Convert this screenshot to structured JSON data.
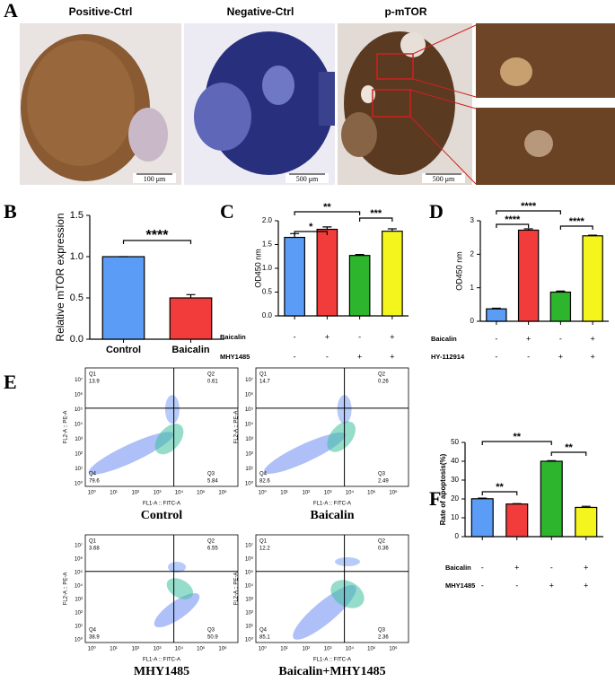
{
  "panel_a": {
    "label": "A",
    "titles": [
      "Positive-Ctrl",
      "Negative-Ctrl",
      "p-mTOR"
    ],
    "scale_bars": [
      "100 μm",
      "500 μm",
      "500 μm"
    ]
  },
  "chart_data": [
    {
      "type": "bar",
      "label": "B",
      "ylabel": "Relative mTOR expression",
      "categories": [
        "Control",
        "Baicalin"
      ],
      "values": [
        1.0,
        0.5
      ],
      "errors": [
        0,
        0.04
      ],
      "colors": [
        "#5b9cf6",
        "#f23c3c"
      ],
      "ylim": [
        0,
        1.5
      ],
      "yticks": [
        {
          "value": 0,
          "label": "0.0"
        },
        {
          "value": 0.5,
          "label": "0.5"
        },
        {
          "value": 1,
          "label": "1.0"
        },
        {
          "value": 1.5,
          "label": "1.5"
        }
      ],
      "comparisons": [
        {
          "from": 0,
          "to": 1,
          "label": "****"
        }
      ]
    },
    {
      "type": "bar",
      "label": "C",
      "ylabel": "OD450 nm",
      "values": [
        1.65,
        1.82,
        1.27,
        1.78
      ],
      "errors": [
        0.08,
        0.05,
        0.02,
        0.05
      ],
      "colors": [
        "#5b9cf6",
        "#f23c3c",
        "#2db52d",
        "#f5f51e"
      ],
      "ylim": [
        0,
        2
      ],
      "yticks": [
        {
          "value": 0,
          "label": "0.0"
        },
        {
          "value": 0.5,
          "label": "0.5"
        },
        {
          "value": 1,
          "label": "1.0"
        },
        {
          "value": 1.5,
          "label": "1.5"
        },
        {
          "value": 2,
          "label": "2.0"
        }
      ],
      "factors": [
        {
          "name": "Baicalin",
          "signs": [
            "-",
            "+",
            "-",
            "+"
          ]
        },
        {
          "name": "MHY1485",
          "signs": [
            "-",
            "-",
            "+",
            "+"
          ]
        }
      ],
      "comparisons": [
        {
          "from": 0,
          "to": 1,
          "label": "*"
        },
        {
          "from": 0,
          "to": 2,
          "label": "**"
        },
        {
          "from": 2,
          "to": 3,
          "label": "***"
        }
      ]
    },
    {
      "type": "bar",
      "label": "D",
      "ylabel": "OD450 nm",
      "values": [
        0.37,
        2.72,
        0.87,
        2.55
      ],
      "errors": [
        0.02,
        0.04,
        0.03,
        0.02
      ],
      "colors": [
        "#5b9cf6",
        "#f23c3c",
        "#2db52d",
        "#f5f51e"
      ],
      "ylim": [
        0,
        3
      ],
      "yticks": [
        0,
        1,
        2,
        3
      ],
      "factors": [
        {
          "name": "Baicalin",
          "signs": [
            "-",
            "+",
            "-",
            "+"
          ]
        },
        {
          "name": "HY-112914",
          "signs": [
            "-",
            "-",
            "+",
            "+"
          ]
        }
      ],
      "comparisons": [
        {
          "from": 0,
          "to": 1,
          "label": "****"
        },
        {
          "from": 0,
          "to": 2,
          "label": "****"
        },
        {
          "from": 2,
          "to": 3,
          "label": "****"
        }
      ]
    },
    {
      "type": "bar",
      "label": "F",
      "ylabel": "Rate of apoptosis(%)",
      "values": [
        20.1,
        17.3,
        40.0,
        15.5
      ],
      "errors": [
        0.3,
        0.2,
        0.3,
        0.6
      ],
      "colors": [
        "#5b9cf6",
        "#f23c3c",
        "#2db52d",
        "#f5f51e"
      ],
      "ylim": [
        0,
        50
      ],
      "yticks": [
        0,
        10,
        20,
        30,
        40,
        50
      ],
      "factors": [
        {
          "name": "Baicalin",
          "signs": [
            "-",
            "+",
            "-",
            "+"
          ]
        },
        {
          "name": "MHY1485",
          "signs": [
            "-",
            "-",
            "+",
            "+"
          ]
        }
      ],
      "comparisons": [
        {
          "from": 0,
          "to": 1,
          "label": "**"
        },
        {
          "from": 0,
          "to": 2,
          "label": "**"
        },
        {
          "from": 2,
          "to": 3,
          "label": "**"
        }
      ]
    }
  ],
  "panel_e": {
    "label": "E",
    "xlabel": "FL1-A :: FITC-A",
    "ylabel": "FL2-A :: PE-A",
    "xticks": [
      "10⁰",
      "10¹",
      "10²",
      "10³",
      "10⁴",
      "10⁵",
      "10⁶"
    ],
    "yticks": [
      "10⁰",
      "10¹",
      "10²",
      "10³",
      "10⁴",
      "10⁵",
      "10⁶",
      "10⁷"
    ],
    "quadrant_names": [
      "Q1",
      "Q2",
      "Q3",
      "Q4"
    ],
    "plots": [
      {
        "caption": "Control",
        "quadrants": [
          13.9,
          0.61,
          5.84,
          79.6
        ]
      },
      {
        "caption": "Baicalin",
        "quadrants": [
          14.7,
          0.26,
          2.49,
          82.6
        ]
      },
      {
        "caption": "MHY1485",
        "quadrants": [
          3.68,
          6.55,
          50.9,
          38.9
        ]
      },
      {
        "caption": "Baicalin+MHY1485",
        "quadrants": [
          12.2,
          0.36,
          2.36,
          85.1
        ]
      }
    ]
  }
}
